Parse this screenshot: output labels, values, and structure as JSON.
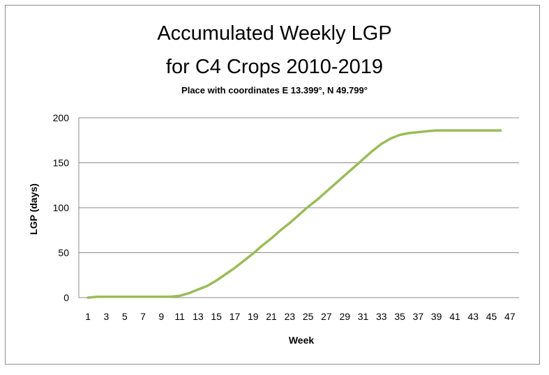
{
  "chart_data": {
    "type": "line",
    "title_line1": "Accumulated Weekly LGP",
    "title_line2": "for C4 Crops 2010-2019",
    "subtitle": "Place with coordinates E 13.399°, N 49.799°",
    "xlabel": "Week",
    "ylabel": "LGP (days)",
    "ylim": [
      0,
      200
    ],
    "yticks": [
      "0",
      "50",
      "100",
      "150",
      "200"
    ],
    "xticks": [
      "1",
      "3",
      "5",
      "7",
      "9",
      "11",
      "13",
      "15",
      "17",
      "19",
      "21",
      "23",
      "25",
      "27",
      "29",
      "31",
      "33",
      "35",
      "37",
      "39",
      "41",
      "43",
      "45",
      "47"
    ],
    "grid": true,
    "line_color": "#9bbb59",
    "x": [
      1,
      2,
      3,
      4,
      5,
      6,
      7,
      8,
      9,
      10,
      11,
      12,
      13,
      14,
      15,
      16,
      17,
      18,
      19,
      20,
      21,
      22,
      23,
      24,
      25,
      26,
      27,
      28,
      29,
      30,
      31,
      32,
      33,
      34,
      35,
      36,
      37,
      38,
      39,
      40,
      41,
      42,
      43,
      44,
      45,
      46
    ],
    "values": [
      0,
      1,
      1,
      1,
      1,
      1,
      1,
      1,
      1,
      1,
      2,
      5,
      9,
      13,
      19,
      26,
      33,
      41,
      49,
      58,
      66,
      75,
      83,
      92,
      101,
      109,
      118,
      127,
      136,
      145,
      154,
      163,
      171,
      177,
      181,
      183,
      184,
      185,
      186,
      186,
      186,
      186,
      186,
      186,
      186,
      186
    ]
  }
}
